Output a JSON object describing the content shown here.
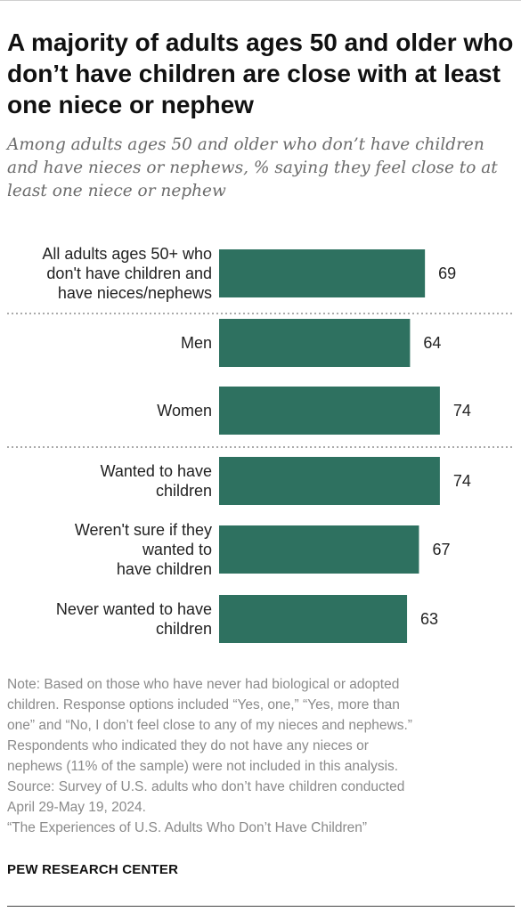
{
  "title": "A majority of adults ages 50 and older who don’t have children are close with at least one niece or nephew",
  "subtitle": "Among adults ages 50 and older who don’t have children and have nieces or nephews, % saying they feel close to at least one niece or nephew",
  "chart_data": {
    "type": "bar",
    "orientation": "horizontal",
    "categories": [
      [
        "All adults ages 50+ who",
        "don't have children and",
        "have nieces/nephews"
      ],
      [
        "Men"
      ],
      [
        "Women"
      ],
      [
        "Wanted to have",
        "children"
      ],
      [
        "Weren't sure if they",
        "wanted to",
        "have children"
      ],
      [
        "Never wanted to have",
        "children"
      ]
    ],
    "values": [
      69,
      64,
      74,
      74,
      67,
      63
    ],
    "groups_separated_after": [
      0,
      2
    ],
    "bar_color": "#2e7160",
    "xlim": [
      0,
      100
    ],
    "grid": false,
    "legend": "none"
  },
  "notes": [
    "Note: Based on those who have never had biological or adopted",
    "children. Response options included “Yes, one,” “Yes, more than",
    "one” and “No, I don’t feel close to any of my nieces and nephews.”",
    "Respondents who indicated they do not have any nieces or",
    "nephews (11% of the sample) were not included in this analysis.",
    "Source: Survey of U.S. adults who don’t have children conducted",
    "April 29-May 19, 2024.",
    "“The Experiences of U.S. Adults Who Don’t Have Children”"
  ],
  "brand": "PEW RESEARCH CENTER"
}
